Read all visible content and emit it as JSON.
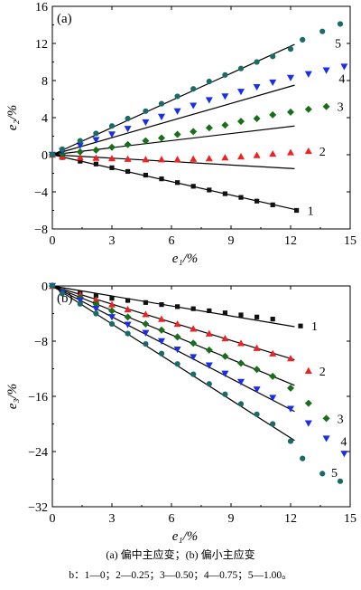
{
  "chart_data": [
    {
      "type": "scatter",
      "panel_label": "(a)",
      "xlabel": "e₁/%",
      "ylabel": "e₂/%",
      "xlim": [
        0,
        15
      ],
      "ylim": [
        -8,
        16
      ],
      "xticks": [
        "0",
        "3",
        "6",
        "9",
        "12",
        "15"
      ],
      "yticks": [
        "−8",
        "−4",
        "0",
        "4",
        "8",
        "12",
        "16"
      ],
      "grid": false,
      "series": [
        {
          "name": "1",
          "marker": "square",
          "color": "#111111",
          "x": [
            0,
            0.5,
            1.4,
            2.2,
            3.0,
            3.8,
            4.7,
            5.5,
            6.3,
            7.1,
            7.9,
            8.7,
            9.5,
            10.3,
            11.1,
            12.3
          ],
          "y": [
            0,
            -0.3,
            -0.7,
            -1.0,
            -1.4,
            -1.8,
            -2.2,
            -2.6,
            -3.0,
            -3.4,
            -3.8,
            -4.2,
            -4.6,
            -5.0,
            -5.4,
            -6.0
          ],
          "fit": [
            [
              0,
              0
            ],
            [
              12.2,
              -5.9
            ]
          ]
        },
        {
          "name": "2",
          "marker": "triangle-up",
          "color": "#ee2222",
          "x": [
            0,
            0.5,
            1.4,
            2.2,
            3.0,
            3.8,
            4.7,
            5.5,
            6.3,
            7.1,
            7.9,
            8.7,
            9.5,
            10.3,
            11.1,
            12.0,
            12.9
          ],
          "y": [
            0,
            -0.2,
            -0.3,
            -0.35,
            -0.4,
            -0.45,
            -0.5,
            -0.5,
            -0.5,
            -0.45,
            -0.4,
            -0.3,
            -0.2,
            -0.05,
            0.1,
            0.25,
            0.4
          ],
          "fit": [
            [
              0,
              0
            ],
            [
              12.2,
              -1.5
            ]
          ]
        },
        {
          "name": "3",
          "marker": "diamond",
          "color": "#1a6e1a",
          "x": [
            0,
            0.5,
            1.4,
            2.2,
            3.0,
            3.8,
            4.7,
            5.5,
            6.3,
            7.1,
            7.9,
            8.7,
            9.5,
            10.3,
            11.1,
            12.0,
            12.9,
            13.8
          ],
          "y": [
            0,
            0.1,
            0.3,
            0.5,
            0.8,
            1.1,
            1.5,
            1.8,
            2.2,
            2.5,
            2.9,
            3.2,
            3.6,
            3.9,
            4.3,
            4.6,
            4.9,
            5.2
          ],
          "fit": [
            [
              0,
              0
            ],
            [
              12.2,
              3.1
            ]
          ]
        },
        {
          "name": "4",
          "marker": "triangle-down",
          "color": "#1a2ee8",
          "x": [
            0,
            0.5,
            1.4,
            2.2,
            3.0,
            3.8,
            4.7,
            5.5,
            6.3,
            7.1,
            7.9,
            8.7,
            9.5,
            10.3,
            11.1,
            12.0,
            12.9,
            13.8,
            14.7
          ],
          "y": [
            0,
            0.4,
            1.0,
            1.6,
            2.2,
            2.8,
            3.5,
            4.1,
            4.7,
            5.3,
            5.9,
            6.3,
            6.8,
            7.3,
            7.8,
            8.3,
            8.7,
            9.1,
            9.5
          ],
          "fit": [
            [
              0,
              0
            ],
            [
              12.2,
              7.5
            ]
          ]
        },
        {
          "name": "5",
          "marker": "circle",
          "color": "#1a6a66",
          "x": [
            0,
            0.5,
            1.4,
            2.2,
            3.0,
            3.8,
            4.7,
            5.5,
            6.3,
            7.1,
            7.9,
            8.7,
            9.5,
            10.3,
            11.1,
            12.0,
            12.6,
            13.6,
            14.5
          ],
          "y": [
            0,
            0.6,
            1.5,
            2.3,
            3.1,
            3.9,
            4.7,
            5.5,
            6.3,
            7.1,
            7.9,
            8.6,
            9.3,
            10.0,
            10.6,
            11.4,
            12.4,
            13.3,
            14.1
          ],
          "fit": [
            [
              0,
              0
            ],
            [
              12.2,
              11.9
            ]
          ]
        }
      ]
    },
    {
      "type": "scatter",
      "panel_label": "(b)",
      "xlabel": "e₁/%",
      "ylabel": "e₃/%",
      "xlim": [
        0,
        15
      ],
      "ylim": [
        -32,
        0
      ],
      "xticks": [
        "0",
        "3",
        "6",
        "9",
        "12",
        "15"
      ],
      "yticks": [
        "−32",
        "−24",
        "−16",
        "−8",
        "0"
      ],
      "grid": false,
      "series": [
        {
          "name": "1",
          "marker": "square",
          "color": "#111111",
          "x": [
            0,
            0.5,
            1.4,
            2.2,
            3.0,
            3.8,
            4.7,
            5.5,
            6.3,
            7.1,
            7.9,
            8.7,
            9.5,
            10.3,
            11.1,
            12.5
          ],
          "y": [
            0,
            -0.6,
            -1.0,
            -1.4,
            -1.8,
            -2.1,
            -2.4,
            -2.7,
            -3.0,
            -3.3,
            -3.6,
            -3.9,
            -4.2,
            -4.5,
            -4.8,
            -5.8
          ],
          "fit": [
            [
              0,
              0
            ],
            [
              12.2,
              -5.9
            ]
          ]
        },
        {
          "name": "2",
          "marker": "triangle-up",
          "color": "#ee2222",
          "x": [
            0,
            0.5,
            1.4,
            2.2,
            3.0,
            3.8,
            4.7,
            5.5,
            6.3,
            7.1,
            7.9,
            8.7,
            9.5,
            10.3,
            11.1,
            12.0,
            12.9
          ],
          "y": [
            0,
            -0.5,
            -1.3,
            -2.0,
            -2.7,
            -3.4,
            -4.1,
            -4.8,
            -5.5,
            -6.2,
            -6.9,
            -7.6,
            -8.3,
            -9.0,
            -9.8,
            -10.5,
            -12.3
          ],
          "fit": [
            [
              0,
              0
            ],
            [
              12.2,
              -10.7
            ]
          ]
        },
        {
          "name": "3",
          "marker": "diamond",
          "color": "#1a6e1a",
          "x": [
            0,
            0.5,
            1.4,
            2.2,
            3.0,
            3.8,
            4.7,
            5.5,
            6.3,
            7.1,
            7.9,
            8.7,
            9.5,
            10.3,
            11.1,
            12.0,
            12.9,
            13.8
          ],
          "y": [
            0,
            -0.7,
            -1.7,
            -2.6,
            -3.6,
            -4.5,
            -5.5,
            -6.4,
            -7.4,
            -8.3,
            -9.3,
            -10.2,
            -11.2,
            -12.1,
            -13.1,
            -14.8,
            -17.0,
            -19.2
          ],
          "fit": [
            [
              0,
              0
            ],
            [
              12.2,
              -14.4
            ]
          ]
        },
        {
          "name": "4",
          "marker": "triangle-down",
          "color": "#1a2ee8",
          "x": [
            0,
            0.5,
            1.4,
            2.2,
            3.0,
            3.8,
            4.7,
            5.5,
            6.3,
            7.1,
            7.9,
            8.7,
            9.5,
            10.3,
            11.1,
            12.0,
            12.9,
            13.8,
            14.7
          ],
          "y": [
            0,
            -0.9,
            -2.1,
            -3.3,
            -4.5,
            -5.6,
            -6.8,
            -8.0,
            -9.2,
            -10.3,
            -11.5,
            -12.7,
            -13.9,
            -15.0,
            -16.2,
            -17.8,
            -19.9,
            -22.1,
            -24.3
          ],
          "fit": [
            [
              0,
              0
            ],
            [
              12.2,
              -18.2
            ]
          ]
        },
        {
          "name": "5",
          "marker": "circle",
          "color": "#1a6a66",
          "x": [
            0,
            0.5,
            1.4,
            2.2,
            3.0,
            3.8,
            4.7,
            5.5,
            6.3,
            7.1,
            7.9,
            8.7,
            9.5,
            10.3,
            11.1,
            12.0,
            12.6,
            13.6,
            14.5
          ],
          "y": [
            0,
            -1.1,
            -2.6,
            -4.0,
            -5.5,
            -6.9,
            -8.4,
            -9.8,
            -11.3,
            -12.8,
            -14.2,
            -15.7,
            -17.1,
            -18.6,
            -20.0,
            -22.5,
            -25.0,
            -27.2,
            -28.3
          ],
          "fit": [
            [
              0,
              0
            ],
            [
              12.2,
              -22.4
            ]
          ]
        }
      ]
    }
  ],
  "caption": {
    "line1": "(a)  偏中主应变；(b)  偏小主应变",
    "line2": "b：1—0；2—0.25；3—0.50；4—0.75；5—1.00。"
  }
}
